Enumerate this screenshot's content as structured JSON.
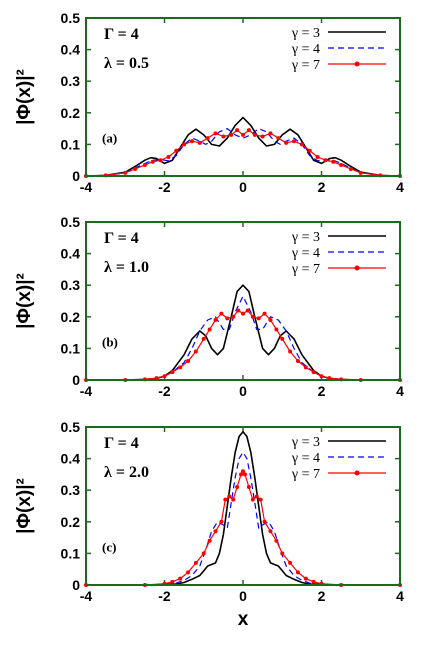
{
  "chart_data": [
    {
      "type": "line",
      "panel_label": "(a)",
      "annotation_gamma": "Γ = 4",
      "annotation_lambda": "λ = 0.5",
      "ylabel": "|Φ(x)|²",
      "xlabel": "",
      "xlim": [
        -4,
        4
      ],
      "ylim": [
        0,
        0.5
      ],
      "xticks": [
        "-4",
        "-2",
        "0",
        "2",
        "4"
      ],
      "yticks": [
        "0",
        "0.1",
        "0.2",
        "0.3",
        "0.4",
        "0.5"
      ],
      "legend_position": "top-right",
      "series": [
        {
          "name": "γ = 3",
          "style": "solid",
          "color": "#000000",
          "x": [
            -4,
            -3.5,
            -3,
            -2.75,
            -2.5,
            -2.35,
            -2.2,
            -2.0,
            -1.8,
            -1.6,
            -1.4,
            -1.2,
            -1.0,
            -0.8,
            -0.6,
            -0.4,
            -0.2,
            0,
            0.2,
            0.4,
            0.6,
            0.8,
            1.0,
            1.2,
            1.4,
            1.6,
            1.8,
            2.0,
            2.2,
            2.35,
            2.5,
            2.75,
            3,
            3.5,
            4
          ],
          "y": [
            0,
            0.002,
            0.012,
            0.03,
            0.05,
            0.058,
            0.055,
            0.04,
            0.05,
            0.09,
            0.13,
            0.148,
            0.13,
            0.1,
            0.095,
            0.12,
            0.16,
            0.185,
            0.16,
            0.12,
            0.095,
            0.1,
            0.13,
            0.148,
            0.13,
            0.09,
            0.05,
            0.04,
            0.055,
            0.058,
            0.05,
            0.03,
            0.012,
            0.002,
            0
          ]
        },
        {
          "name": "γ = 4",
          "style": "dashed",
          "color": "#0000ff",
          "x": [
            -4,
            -3.5,
            -3,
            -2.75,
            -2.5,
            -2.3,
            -2.1,
            -1.9,
            -1.7,
            -1.5,
            -1.3,
            -1.1,
            -0.95,
            -0.8,
            -0.6,
            -0.4,
            -0.2,
            0,
            0.2,
            0.4,
            0.6,
            0.8,
            0.95,
            1.1,
            1.3,
            1.5,
            1.7,
            1.9,
            2.1,
            2.3,
            2.5,
            2.75,
            3,
            3.5,
            4
          ],
          "y": [
            0,
            0.002,
            0.01,
            0.025,
            0.04,
            0.05,
            0.052,
            0.048,
            0.065,
            0.1,
            0.12,
            0.11,
            0.1,
            0.11,
            0.14,
            0.15,
            0.13,
            0.12,
            0.13,
            0.15,
            0.14,
            0.11,
            0.1,
            0.11,
            0.12,
            0.1,
            0.065,
            0.048,
            0.052,
            0.05,
            0.04,
            0.025,
            0.01,
            0.002,
            0
          ]
        },
        {
          "name": "γ = 7",
          "style": "points",
          "color": "#ff0000",
          "x": [
            -4,
            -3.5,
            -3,
            -2.75,
            -2.5,
            -2.3,
            -2.1,
            -1.9,
            -1.7,
            -1.5,
            -1.3,
            -1.1,
            -0.9,
            -0.7,
            -0.5,
            -0.3,
            -0.15,
            0,
            0.15,
            0.3,
            0.5,
            0.7,
            0.9,
            1.1,
            1.3,
            1.5,
            1.7,
            1.9,
            2.1,
            2.3,
            2.5,
            2.75,
            3,
            3.5,
            4
          ],
          "y": [
            0,
            0.002,
            0.01,
            0.022,
            0.035,
            0.045,
            0.05,
            0.06,
            0.08,
            0.1,
            0.11,
            0.105,
            0.12,
            0.135,
            0.125,
            0.13,
            0.145,
            0.13,
            0.145,
            0.13,
            0.125,
            0.135,
            0.12,
            0.105,
            0.11,
            0.1,
            0.08,
            0.06,
            0.05,
            0.045,
            0.035,
            0.022,
            0.01,
            0.002,
            0
          ]
        }
      ]
    },
    {
      "type": "line",
      "panel_label": "(b)",
      "annotation_gamma": "Γ = 4",
      "annotation_lambda": "λ = 1.0",
      "ylabel": "|Φ(x)|²",
      "xlabel": "",
      "xlim": [
        -4,
        4
      ],
      "ylim": [
        0,
        0.5
      ],
      "xticks": [
        "-4",
        "-2",
        "0",
        "2",
        "4"
      ],
      "yticks": [
        "0",
        "0.1",
        "0.2",
        "0.3",
        "0.4",
        "0.5"
      ],
      "legend_position": "top-right",
      "series": [
        {
          "name": "γ = 3",
          "style": "solid",
          "color": "#000000",
          "x": [
            -4,
            -3,
            -2.5,
            -2.2,
            -2.0,
            -1.8,
            -1.5,
            -1.3,
            -1.1,
            -0.95,
            -0.8,
            -0.65,
            -0.5,
            -0.3,
            -0.15,
            0,
            0.15,
            0.3,
            0.5,
            0.65,
            0.8,
            0.95,
            1.1,
            1.3,
            1.5,
            1.8,
            2.0,
            2.2,
            2.5,
            3,
            4
          ],
          "y": [
            0,
            0,
            0.002,
            0.005,
            0.012,
            0.03,
            0.08,
            0.13,
            0.155,
            0.14,
            0.1,
            0.08,
            0.1,
            0.2,
            0.28,
            0.3,
            0.28,
            0.2,
            0.1,
            0.08,
            0.1,
            0.14,
            0.155,
            0.13,
            0.08,
            0.03,
            0.012,
            0.005,
            0.002,
            0,
            0
          ]
        },
        {
          "name": "γ = 4",
          "style": "dashed",
          "color": "#0000ff",
          "x": [
            -4,
            -3,
            -2.5,
            -2.2,
            -2.0,
            -1.8,
            -1.5,
            -1.3,
            -1.1,
            -0.9,
            -0.7,
            -0.5,
            -0.35,
            -0.2,
            0,
            0.2,
            0.35,
            0.5,
            0.7,
            0.9,
            1.1,
            1.3,
            1.5,
            1.8,
            2.0,
            2.2,
            2.5,
            3,
            4
          ],
          "y": [
            0,
            0,
            0.002,
            0.006,
            0.012,
            0.025,
            0.055,
            0.1,
            0.155,
            0.19,
            0.2,
            0.16,
            0.16,
            0.215,
            0.265,
            0.215,
            0.16,
            0.16,
            0.2,
            0.19,
            0.155,
            0.1,
            0.055,
            0.025,
            0.012,
            0.006,
            0.002,
            0,
            0
          ]
        },
        {
          "name": "γ = 7",
          "style": "points",
          "color": "#ff0000",
          "x": [
            -4,
            -3,
            -2.5,
            -2.2,
            -2.0,
            -1.8,
            -1.6,
            -1.4,
            -1.2,
            -1.0,
            -0.85,
            -0.7,
            -0.55,
            -0.4,
            -0.25,
            -0.12,
            0,
            0.12,
            0.25,
            0.4,
            0.55,
            0.7,
            0.85,
            1.0,
            1.2,
            1.4,
            1.6,
            1.8,
            2.0,
            2.2,
            2.5,
            3,
            4
          ],
          "y": [
            0,
            0,
            0.002,
            0.006,
            0.012,
            0.025,
            0.04,
            0.06,
            0.09,
            0.13,
            0.16,
            0.19,
            0.21,
            0.195,
            0.2,
            0.22,
            0.21,
            0.22,
            0.2,
            0.195,
            0.21,
            0.19,
            0.16,
            0.13,
            0.09,
            0.06,
            0.04,
            0.025,
            0.012,
            0.006,
            0.002,
            0,
            0
          ]
        }
      ]
    },
    {
      "type": "line",
      "panel_label": "(c)",
      "annotation_gamma": "Γ = 4",
      "annotation_lambda": "λ = 2.0",
      "ylabel": "|Φ(x)|²",
      "xlabel": "x",
      "xlim": [
        -4,
        4
      ],
      "ylim": [
        0,
        0.5
      ],
      "xticks": [
        "-4",
        "-2",
        "0",
        "2",
        "4"
      ],
      "yticks": [
        "0",
        "0.1",
        "0.2",
        "0.3",
        "0.4",
        "0.5"
      ],
      "legend_position": "top-right",
      "series": [
        {
          "name": "γ = 3",
          "style": "solid",
          "color": "#000000",
          "x": [
            -4,
            -2.5,
            -2,
            -1.7,
            -1.5,
            -1.3,
            -1.1,
            -1.0,
            -0.9,
            -0.8,
            -0.7,
            -0.6,
            -0.5,
            -0.4,
            -0.3,
            -0.2,
            -0.1,
            0,
            0.1,
            0.2,
            0.3,
            0.4,
            0.5,
            0.6,
            0.7,
            0.8,
            0.9,
            1.0,
            1.1,
            1.3,
            1.5,
            1.7,
            2,
            2.5,
            4
          ],
          "y": [
            0,
            0,
            0.001,
            0.003,
            0.008,
            0.018,
            0.03,
            0.045,
            0.06,
            0.065,
            0.07,
            0.1,
            0.16,
            0.25,
            0.34,
            0.42,
            0.47,
            0.485,
            0.47,
            0.42,
            0.34,
            0.25,
            0.16,
            0.1,
            0.07,
            0.065,
            0.06,
            0.045,
            0.03,
            0.018,
            0.008,
            0.003,
            0.001,
            0,
            0
          ]
        },
        {
          "name": "γ = 4",
          "style": "dashed",
          "color": "#0000ff",
          "x": [
            -4,
            -2.5,
            -2,
            -1.7,
            -1.5,
            -1.3,
            -1.1,
            -0.95,
            -0.8,
            -0.65,
            -0.5,
            -0.4,
            -0.3,
            -0.2,
            -0.1,
            0,
            0.1,
            0.2,
            0.3,
            0.4,
            0.5,
            0.65,
            0.8,
            0.95,
            1.1,
            1.3,
            1.5,
            1.7,
            2,
            2.5,
            4
          ],
          "y": [
            0,
            0,
            0.002,
            0.006,
            0.015,
            0.03,
            0.06,
            0.11,
            0.17,
            0.2,
            0.19,
            0.18,
            0.26,
            0.34,
            0.4,
            0.42,
            0.4,
            0.34,
            0.26,
            0.18,
            0.19,
            0.2,
            0.17,
            0.11,
            0.06,
            0.03,
            0.015,
            0.006,
            0.002,
            0,
            0
          ]
        },
        {
          "name": "γ = 7",
          "style": "points",
          "color": "#ff0000",
          "x": [
            -4,
            -2.5,
            -2,
            -1.8,
            -1.6,
            -1.4,
            -1.2,
            -1.0,
            -0.85,
            -0.7,
            -0.55,
            -0.45,
            -0.35,
            -0.25,
            -0.15,
            -0.05,
            0,
            0.05,
            0.15,
            0.25,
            0.35,
            0.45,
            0.55,
            0.7,
            0.85,
            1.0,
            1.2,
            1.4,
            1.6,
            1.8,
            2,
            2.5,
            4
          ],
          "y": [
            0,
            0,
            0.004,
            0.01,
            0.02,
            0.04,
            0.07,
            0.1,
            0.14,
            0.17,
            0.2,
            0.27,
            0.28,
            0.27,
            0.31,
            0.35,
            0.36,
            0.35,
            0.31,
            0.27,
            0.28,
            0.27,
            0.2,
            0.17,
            0.14,
            0.1,
            0.07,
            0.04,
            0.02,
            0.01,
            0.004,
            0,
            0
          ]
        }
      ]
    }
  ]
}
